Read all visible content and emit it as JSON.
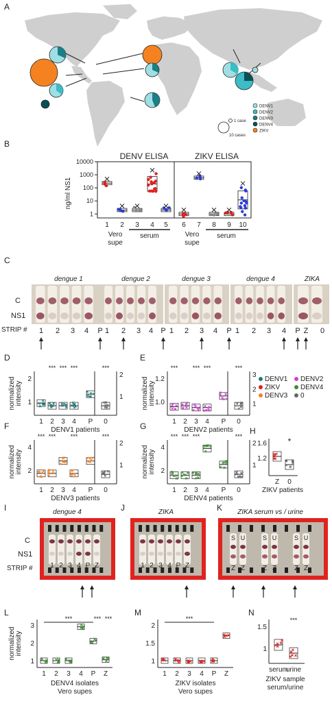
{
  "panels": {
    "a": "A",
    "b": "B",
    "c": "C",
    "d": "D",
    "e": "E",
    "f": "F",
    "g": "G",
    "h": "H",
    "i": "I",
    "j": "J",
    "k": "K",
    "l": "L",
    "m": "M",
    "n": "N"
  },
  "map": {
    "legend": [
      "DENV1",
      "DENV2",
      "DENV3",
      "DENV4",
      "ZIKV"
    ],
    "legend_colors": [
      "#9fdfe4",
      "#3cbcc5",
      "#1a7f86",
      "#0b4f55",
      "#f58220"
    ],
    "size_1": "1 case",
    "size_10": "10 cases"
  },
  "elisa": {
    "ylabel": "ng/ml NS1",
    "yticks": [
      "10000",
      "1000",
      "100",
      "10",
      "1"
    ],
    "denv_title": "DENV ELISA",
    "zikv_title": "ZIKV ELISA",
    "xticks": [
      "1",
      "2",
      "3",
      "4",
      "5",
      "6",
      "7",
      "8",
      "9",
      "10"
    ],
    "vero": "Vero",
    "supe": "supe",
    "serum": "serum"
  },
  "chart_data": [
    {
      "type": "box",
      "title": "DENV ELISA",
      "ylabel": "ng/ml NS1",
      "yscale": "log",
      "ylim": [
        0.5,
        10000
      ],
      "categories": [
        "1",
        "2",
        "3",
        "4",
        "5"
      ],
      "medians": [
        230,
        2,
        2,
        200,
        2
      ],
      "colors": [
        "#e02020",
        "#2a3bd4",
        "#888888",
        "#e02020",
        "#2a3bd4"
      ]
    },
    {
      "type": "box",
      "title": "ZIKV ELISA",
      "ylabel": "ng/ml NS1",
      "yscale": "log",
      "ylim": [
        0.5,
        10000
      ],
      "categories": [
        "6",
        "7",
        "8",
        "9",
        "10"
      ],
      "medians": [
        1,
        600,
        1,
        1,
        12
      ],
      "colors": [
        "#e02020",
        "#2a3bd4",
        "#888888",
        "#e02020",
        "#2a3bd4"
      ]
    },
    {
      "type": "box",
      "title": "DENV1 patients",
      "ylabel": "normalized intensity",
      "categories": [
        "1",
        "2",
        "3",
        "4",
        "P",
        "0"
      ],
      "medians": [
        1.2,
        1.05,
        1.05,
        1.05,
        1.7,
        1.05
      ],
      "color": "#1f7a78"
    },
    {
      "type": "box",
      "title": "DENV2 patients",
      "ylabel": "normalized intensity",
      "categories": [
        "1",
        "2",
        "3",
        "4",
        "P",
        "0"
      ],
      "medians": [
        1.0,
        1.05,
        0.95,
        0.95,
        1.6,
        1.05
      ],
      "color": "#d43ad4"
    },
    {
      "type": "box",
      "title": "DENV3 patients",
      "ylabel": "normalized intensity",
      "categories": [
        "1",
        "2",
        "3",
        "4",
        "P",
        "0"
      ],
      "medians": [
        1.1,
        1.1,
        1.8,
        1.1,
        1.8,
        1.05
      ],
      "color": "#f58220"
    },
    {
      "type": "box",
      "title": "DENV4 patients",
      "ylabel": "normalized intensity",
      "categories": [
        "1",
        "2",
        "3",
        "4",
        "P",
        "0"
      ],
      "medians": [
        1.0,
        1.0,
        1.0,
        2.5,
        1.6,
        1.05
      ],
      "color": "#3e8a34"
    },
    {
      "type": "box",
      "title": "ZIKV patients",
      "categories": [
        "Z",
        "0"
      ],
      "medians": [
        1.3,
        1.1
      ],
      "colors": [
        "#e02020",
        "#555555"
      ]
    },
    {
      "type": "box",
      "title": "DENV4 isolates Vero supes",
      "ylabel": "normalized intensity",
      "categories": [
        "1",
        "2",
        "3",
        "4",
        "P",
        "Z"
      ],
      "medians": [
        1.0,
        1.0,
        1.0,
        2.9,
        2.1,
        1.05
      ],
      "color": "#3e8a34"
    },
    {
      "type": "box",
      "title": "ZIKV isolates Vero supes",
      "categories": [
        "1",
        "2",
        "3",
        "4",
        "P",
        "Z"
      ],
      "medians": [
        1.0,
        1.0,
        1.0,
        1.0,
        1.0,
        1.7
      ],
      "color": "#e02020"
    },
    {
      "type": "box",
      "title": "ZIKV sample serum/urine",
      "categories": [
        "serum",
        "urine"
      ],
      "medians": [
        1.25,
        1.05
      ],
      "color": "#e02020"
    }
  ],
  "strips": {
    "c_titles": [
      "dengue 1",
      "dengue 2",
      "dengue 3",
      "dengue 4",
      "ZIKA"
    ],
    "row_c": "C",
    "row_ns1": "NS1",
    "row_strip": "STRIP #",
    "labels": [
      "1",
      "2",
      "3",
      "4",
      "P",
      "1",
      "2",
      "3",
      "4",
      "P",
      "1",
      "2",
      "3",
      "4",
      "P",
      "1",
      "2",
      "3",
      "4",
      "P",
      "Z",
      "0"
    ],
    "i_title": "dengue 4",
    "j_title": "ZIKA",
    "k_title": "ZIKA serum vs / urine",
    "i_labels": [
      "1",
      "2",
      "3",
      "4",
      "P",
      "Z"
    ],
    "j_labels": [
      "1",
      "2",
      "3",
      "4",
      "P",
      "Z"
    ],
    "k_top": [
      "S",
      "U",
      "S",
      "U",
      "S",
      "U"
    ],
    "k_bottom": [
      "Z",
      "Z",
      "Z",
      "Z",
      "Z",
      "Z"
    ]
  },
  "patients": {
    "ylabel1": "normalized",
    "ylabel2": "intensity",
    "d_xlabel": "DENV1 patients",
    "e_xlabel": "DENV2 patients",
    "f_xlabel": "DENV3 patients",
    "g_xlabel": "DENV4 patients",
    "h_xlabel": "ZIKV patients",
    "xticks": [
      "1",
      "2",
      "3",
      "4",
      "P",
      "0"
    ],
    "h_xticks": [
      "Z",
      "0"
    ],
    "sig": "***",
    "star": "*",
    "legend": [
      "DENV1",
      "DENV2",
      "ZIKV",
      "DENV4",
      "DENV3",
      "0"
    ],
    "legend_colors": [
      "#1f7a78",
      "#d43ad4",
      "#e02020",
      "#3e8a34",
      "#f58220",
      "#666666"
    ],
    "d_left": [
      "2",
      "1"
    ],
    "d_right": [
      "2",
      "1"
    ],
    "e_left": [
      "1.2",
      "1.0"
    ],
    "e_right": [
      "3",
      "2",
      "1"
    ],
    "f_left": [
      "4",
      "2"
    ],
    "f_right": [
      "2",
      "1"
    ],
    "g_left": [
      "4",
      "2"
    ],
    "g_right": [
      "2",
      "1"
    ],
    "h_left": [
      "1.6",
      "1.2"
    ]
  },
  "isolates": {
    "l_xlabel1": "DENV4 isolates",
    "l_xlabel2": "Vero supes",
    "m_xlabel1": "ZIKV isolates",
    "m_xlabel2": "Vero supes",
    "n_xlabel1": "ZIKV sample",
    "n_xlabel2": "serum/urine",
    "xticks": [
      "1",
      "2",
      "3",
      "4",
      "P",
      "Z"
    ],
    "n_xticks": [
      "serum",
      "urine"
    ],
    "l_yticks": [
      "3",
      "2",
      "1"
    ],
    "m_yticks": [
      "2",
      "1.5",
      "1"
    ],
    "n_yticks": [
      "1.5",
      "1"
    ],
    "sig": "***"
  }
}
